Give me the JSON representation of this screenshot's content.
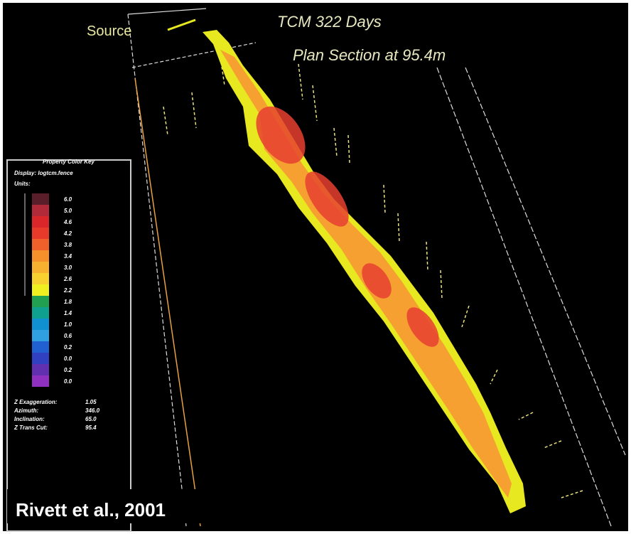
{
  "header": {
    "source": "Source",
    "title": "TCM 322 Days",
    "subtitle": "Plan Section at 95.4m"
  },
  "legend": {
    "title": "Property Color Key",
    "display": "Display: logtcm.fence",
    "units": "Units:",
    "entries": [
      {
        "label": "6.0",
        "color": "#5a1e2a"
      },
      {
        "label": "5.0",
        "color": "#b02a3a"
      },
      {
        "label": "4.6",
        "color": "#d8262a"
      },
      {
        "label": "4.2",
        "color": "#e83a2a"
      },
      {
        "label": "3.8",
        "color": "#f0602a"
      },
      {
        "label": "3.4",
        "color": "#f5902a"
      },
      {
        "label": "3.0",
        "color": "#f8b030"
      },
      {
        "label": "2.6",
        "color": "#f8d030"
      },
      {
        "label": "2.2",
        "color": "#f0f020"
      },
      {
        "label": "1.8",
        "color": "#20a050"
      },
      {
        "label": "1.4",
        "color": "#10a090"
      },
      {
        "label": "1.0",
        "color": "#1090d0"
      },
      {
        "label": "0.6",
        "color": "#30a0e0"
      },
      {
        "label": "0.2",
        "color": "#2060d0"
      },
      {
        "label": "0.0",
        "color": "#3040c0"
      },
      {
        "label": "0.2",
        "color": "#6030b0"
      },
      {
        "label": "0.0",
        "color": "#9030c0"
      }
    ],
    "stats": [
      {
        "label": "Z Exaggeration:",
        "value": "1.05"
      },
      {
        "label": "Azimuth:",
        "value": "346.0"
      },
      {
        "label": "Inclination:",
        "value": "65.0"
      },
      {
        "label": "Z Trans Cut:",
        "value": "95.4"
      }
    ]
  },
  "credit": "Rivett et al., 2001"
}
